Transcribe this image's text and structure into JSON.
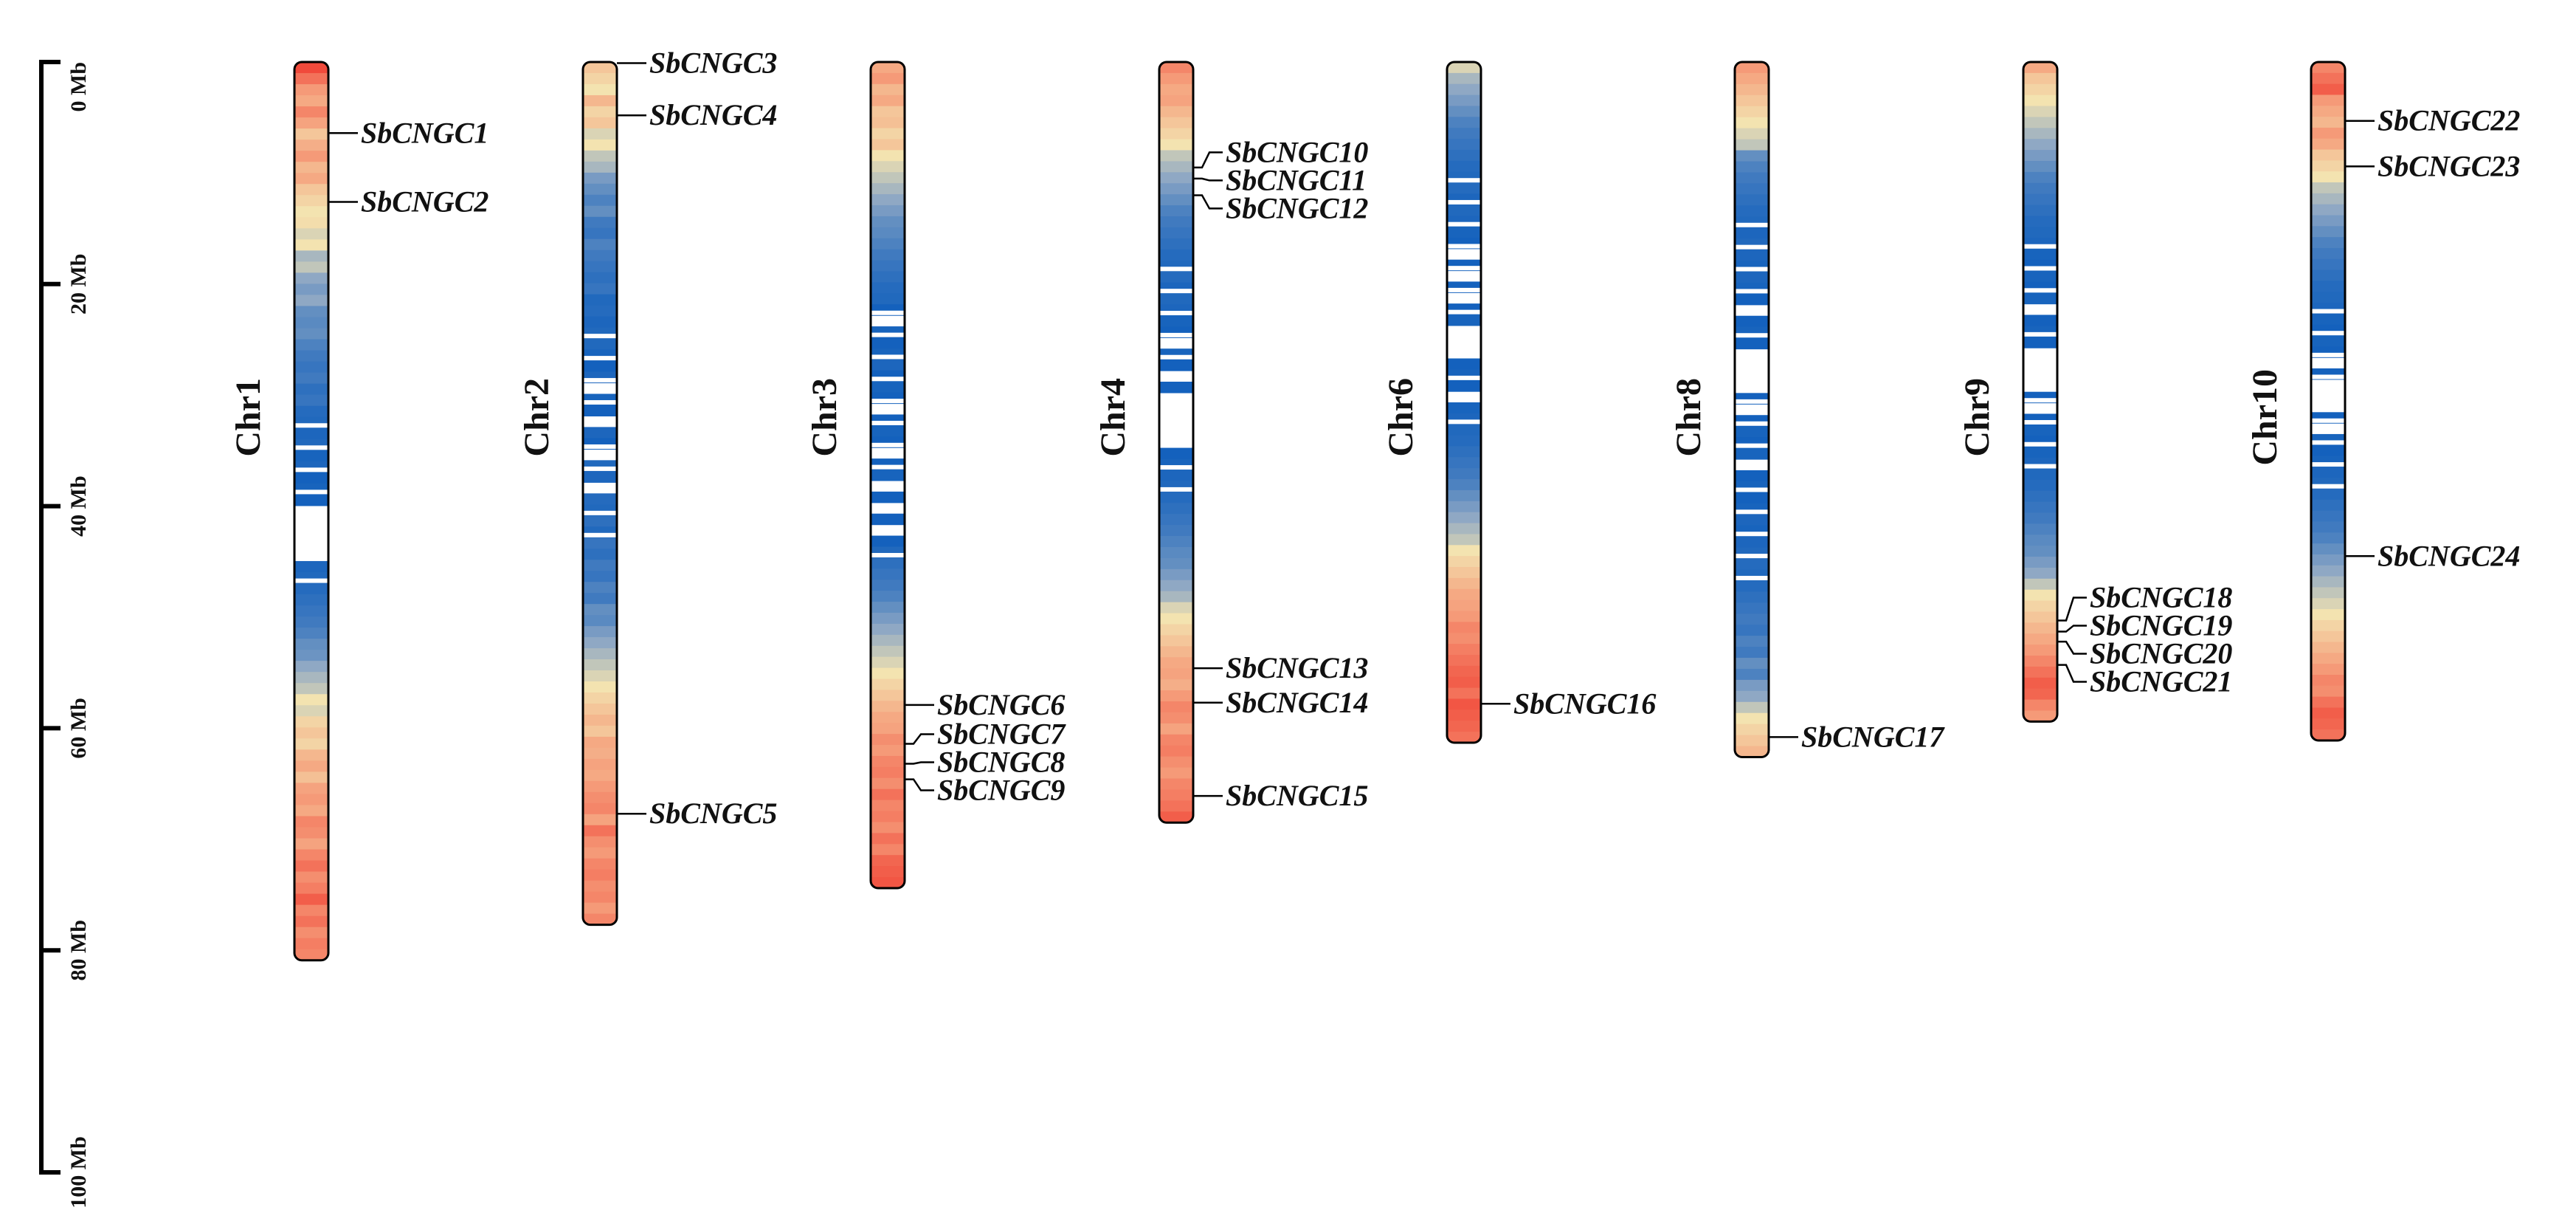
{
  "scale": {
    "unit": "Mb",
    "max": 100,
    "ticks": [
      {
        "value": 0,
        "label": "0 Mb"
      },
      {
        "value": 20,
        "label": "20 Mb"
      },
      {
        "value": 40,
        "label": "40 Mb"
      },
      {
        "value": 60,
        "label": "60 Mb"
      },
      {
        "value": 80,
        "label": "80 Mb"
      },
      {
        "value": 100,
        "label": "100 Mb"
      }
    ]
  },
  "density_colors": {
    "high": "#f0362c",
    "mid_high": "#f59a78",
    "mid": "#f3e3b0",
    "mid_low": "#8fa8c4",
    "low": "#0b5cbc",
    "none": "#ffffff"
  },
  "chromosomes": [
    {
      "name": "Chr1",
      "length": 80.9,
      "density": [
        0.95,
        0.85,
        0.75,
        0.7,
        0.8,
        0.72,
        0.6,
        0.68,
        0.75,
        0.65,
        0.7,
        0.6,
        0.55,
        0.5,
        0.52,
        0.45,
        0.5,
        0.35,
        0.4,
        0.3,
        0.25,
        0.3,
        0.2,
        0.18,
        0.2,
        0.15,
        0.12,
        0.1,
        0.12,
        0.08,
        0.1,
        0.06,
        0.05,
        0.04,
        0.05,
        0.03,
        0.04,
        0.02,
        0.03,
        0.02,
        0.0,
        0.0,
        0.0,
        0.0,
        0.0,
        0.04,
        0.05,
        0.06,
        0.08,
        0.1,
        0.12,
        0.15,
        0.2,
        0.22,
        0.3,
        0.35,
        0.4,
        0.5,
        0.45,
        0.55,
        0.6,
        0.55,
        0.65,
        0.7,
        0.62,
        0.72,
        0.75,
        0.7,
        0.8,
        0.78,
        0.72,
        0.8,
        0.85,
        0.78,
        0.82,
        0.9,
        0.8,
        0.85,
        0.78,
        0.82,
        0.8
      ],
      "genes": [
        {
          "name": "SbCNGC1",
          "pos": 6.4
        },
        {
          "name": "SbCNGC2",
          "pos": 12.6
        }
      ]
    },
    {
      "name": "Chr2",
      "length": 77.7,
      "density": [
        0.6,
        0.55,
        0.5,
        0.65,
        0.55,
        0.6,
        0.45,
        0.5,
        0.4,
        0.35,
        0.25,
        0.2,
        0.15,
        0.2,
        0.12,
        0.1,
        0.15,
        0.12,
        0.1,
        0.08,
        0.1,
        0.05,
        0.06,
        0.04,
        0.05,
        0.05,
        0.03,
        0.02,
        0.04,
        0.0,
        0.03,
        0.02,
        0.0,
        0.04,
        0.02,
        0.0,
        0.05,
        0.04,
        0.0,
        0.06,
        0.05,
        0.08,
        0.05,
        0.1,
        0.08,
        0.12,
        0.1,
        0.15,
        0.12,
        0.2,
        0.18,
        0.25,
        0.3,
        0.35,
        0.4,
        0.45,
        0.5,
        0.55,
        0.6,
        0.65,
        0.6,
        0.7,
        0.68,
        0.72,
        0.7,
        0.75,
        0.78,
        0.8,
        0.72,
        0.85,
        0.78,
        0.75,
        0.8,
        0.82,
        0.78,
        0.8,
        0.75,
        0.8
      ],
      "genes": [
        {
          "name": "SbCNGC3",
          "pos": 0.1
        },
        {
          "name": "SbCNGC4",
          "pos": 4.8
        },
        {
          "name": "SbCNGC5",
          "pos": 67.7
        }
      ]
    },
    {
      "name": "Chr3",
      "length": 74.4,
      "density": [
        0.7,
        0.75,
        0.65,
        0.7,
        0.6,
        0.62,
        0.55,
        0.6,
        0.5,
        0.45,
        0.4,
        0.35,
        0.3,
        0.25,
        0.2,
        0.18,
        0.15,
        0.12,
        0.1,
        0.08,
        0.06,
        0.05,
        0.02,
        0.0,
        0.03,
        0.02,
        0.03,
        0.04,
        0.02,
        0.03,
        0.02,
        0.0,
        0.02,
        0.03,
        0.02,
        0.0,
        0.02,
        0.03,
        0.0,
        0.02,
        0.0,
        0.02,
        0.0,
        0.02,
        0.05,
        0.08,
        0.1,
        0.12,
        0.15,
        0.2,
        0.25,
        0.3,
        0.35,
        0.4,
        0.45,
        0.5,
        0.55,
        0.6,
        0.65,
        0.7,
        0.72,
        0.78,
        0.75,
        0.8,
        0.82,
        0.78,
        0.85,
        0.8,
        0.82,
        0.78,
        0.85,
        0.8,
        0.88,
        0.9,
        0.92
      ],
      "genes": [
        {
          "name": "SbCNGC6",
          "pos": 57.9
        },
        {
          "name": "SbCNGC7",
          "pos": 61.4
        },
        {
          "name": "SbCNGC8",
          "pos": 63.2
        },
        {
          "name": "SbCNGC9",
          "pos": 64.6
        }
      ]
    },
    {
      "name": "Chr4",
      "length": 68.5,
      "density": [
        0.8,
        0.75,
        0.7,
        0.72,
        0.65,
        0.6,
        0.55,
        0.5,
        0.4,
        0.35,
        0.3,
        0.25,
        0.2,
        0.15,
        0.12,
        0.1,
        0.08,
        0.06,
        0.05,
        0.06,
        0.04,
        0.05,
        0.04,
        0.03,
        0.02,
        0.0,
        0.03,
        0.02,
        0.0,
        0.02,
        0.0,
        0.0,
        0.0,
        0.0,
        0.0,
        0.02,
        0.03,
        0.04,
        0.05,
        0.06,
        0.08,
        0.1,
        0.12,
        0.15,
        0.18,
        0.2,
        0.25,
        0.3,
        0.35,
        0.45,
        0.5,
        0.55,
        0.6,
        0.65,
        0.7,
        0.72,
        0.68,
        0.75,
        0.8,
        0.78,
        0.72,
        0.8,
        0.82,
        0.78,
        0.75,
        0.8,
        0.82,
        0.85,
        0.9
      ],
      "genes": [
        {
          "name": "SbCNGC10",
          "pos": 9.5
        },
        {
          "name": "SbCNGC11",
          "pos": 10.5
        },
        {
          "name": "SbCNGC12",
          "pos": 12.0
        },
        {
          "name": "SbCNGC13",
          "pos": 54.6
        },
        {
          "name": "SbCNGC14",
          "pos": 57.7
        },
        {
          "name": "SbCNGC15",
          "pos": 66.1
        }
      ]
    },
    {
      "name": "Chr6",
      "length": 61.3,
      "density": [
        0.45,
        0.35,
        0.3,
        0.25,
        0.2,
        0.15,
        0.12,
        0.1,
        0.08,
        0.06,
        0.05,
        0.06,
        0.04,
        0.05,
        0.04,
        0.03,
        0.02,
        0.0,
        0.02,
        0.0,
        0.02,
        0.0,
        0.02,
        0.03,
        0.0,
        0.0,
        0.0,
        0.02,
        0.03,
        0.02,
        0.0,
        0.03,
        0.04,
        0.05,
        0.06,
        0.08,
        0.1,
        0.12,
        0.15,
        0.2,
        0.25,
        0.3,
        0.35,
        0.4,
        0.5,
        0.55,
        0.6,
        0.65,
        0.7,
        0.72,
        0.75,
        0.8,
        0.78,
        0.82,
        0.85,
        0.88,
        0.9,
        0.85,
        0.92,
        0.9,
        0.88,
        0.85
      ],
      "genes": [
        {
          "name": "SbCNGC16",
          "pos": 57.8
        }
      ]
    },
    {
      "name": "Chr8",
      "length": 62.6,
      "density": [
        0.75,
        0.7,
        0.65,
        0.6,
        0.55,
        0.5,
        0.45,
        0.4,
        0.2,
        0.15,
        0.12,
        0.1,
        0.08,
        0.06,
        0.05,
        0.04,
        0.05,
        0.04,
        0.03,
        0.04,
        0.03,
        0.02,
        0.0,
        0.02,
        0.03,
        0.02,
        0.0,
        0.0,
        0.0,
        0.0,
        0.02,
        0.0,
        0.02,
        0.03,
        0.02,
        0.03,
        0.0,
        0.02,
        0.03,
        0.02,
        0.03,
        0.04,
        0.03,
        0.04,
        0.05,
        0.06,
        0.05,
        0.06,
        0.08,
        0.1,
        0.12,
        0.1,
        0.15,
        0.12,
        0.2,
        0.15,
        0.25,
        0.3,
        0.4,
        0.5,
        0.55,
        0.6,
        0.65
      ],
      "genes": [
        {
          "name": "SbCNGC17",
          "pos": 60.8
        }
      ]
    },
    {
      "name": "Chr9",
      "length": 59.4,
      "density": [
        0.7,
        0.6,
        0.55,
        0.5,
        0.45,
        0.4,
        0.35,
        0.3,
        0.25,
        0.2,
        0.15,
        0.12,
        0.1,
        0.08,
        0.06,
        0.05,
        0.04,
        0.03,
        0.02,
        0.03,
        0.02,
        0.03,
        0.0,
        0.02,
        0.03,
        0.02,
        0.0,
        0.0,
        0.0,
        0.0,
        0.02,
        0.0,
        0.02,
        0.03,
        0.02,
        0.03,
        0.04,
        0.05,
        0.06,
        0.08,
        0.1,
        0.12,
        0.15,
        0.18,
        0.2,
        0.25,
        0.3,
        0.4,
        0.5,
        0.55,
        0.6,
        0.65,
        0.7,
        0.75,
        0.8,
        0.85,
        0.9,
        0.88,
        0.8,
        0.75
      ],
      "genes": [
        {
          "name": "SbCNGC18",
          "pos": 50.3
        },
        {
          "name": "SbCNGC19",
          "pos": 51.3
        },
        {
          "name": "SbCNGC20",
          "pos": 52.2
        },
        {
          "name": "SbCNGC21",
          "pos": 54.3
        }
      ]
    },
    {
      "name": "Chr10",
      "length": 61.1,
      "density": [
        0.8,
        0.85,
        0.9,
        0.75,
        0.7,
        0.65,
        0.75,
        0.7,
        0.6,
        0.55,
        0.5,
        0.4,
        0.35,
        0.3,
        0.25,
        0.2,
        0.15,
        0.12,
        0.1,
        0.08,
        0.06,
        0.05,
        0.04,
        0.03,
        0.02,
        0.03,
        0.02,
        0.0,
        0.02,
        0.0,
        0.0,
        0.0,
        0.02,
        0.0,
        0.03,
        0.02,
        0.03,
        0.04,
        0.05,
        0.06,
        0.08,
        0.1,
        0.12,
        0.15,
        0.2,
        0.25,
        0.3,
        0.35,
        0.4,
        0.45,
        0.5,
        0.55,
        0.6,
        0.65,
        0.7,
        0.75,
        0.8,
        0.78,
        0.85,
        0.9,
        0.88,
        0.85
      ],
      "genes": [
        {
          "name": "SbCNGC22",
          "pos": 5.3
        },
        {
          "name": "SbCNGC23",
          "pos": 9.4
        },
        {
          "name": "SbCNGC24",
          "pos": 44.5
        }
      ]
    }
  ]
}
